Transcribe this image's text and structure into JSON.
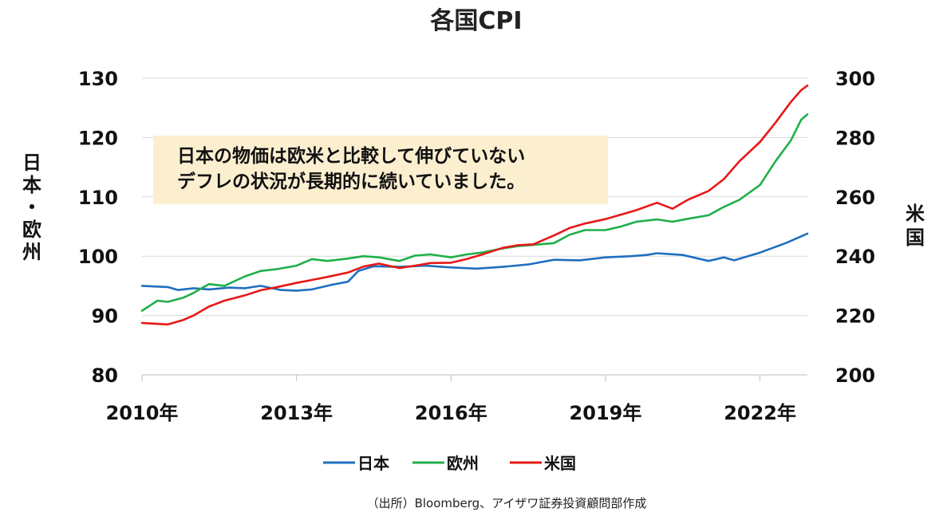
{
  "chart_data": {
    "type": "line",
    "title": "各国CPI",
    "x_ticks": [
      "2010年",
      "2013年",
      "2016年",
      "2019年",
      "2022年"
    ],
    "x_range": [
      2010.0,
      2022.92
    ],
    "y_left": {
      "label_chars": [
        "日",
        "本",
        "・",
        "欧",
        "州"
      ],
      "range": [
        80,
        130
      ],
      "ticks": [
        "80",
        "90",
        "100",
        "110",
        "120",
        "130"
      ],
      "grid": true
    },
    "y_right": {
      "label_chars": [
        "米",
        "国"
      ],
      "range": [
        200,
        300
      ],
      "ticks": [
        "200",
        "220",
        "240",
        "260",
        "280",
        "300"
      ]
    },
    "annotation": {
      "lines": [
        "日本の物価は欧米と比較して伸びていない",
        "デフレの状況が長期的に続いていました。"
      ],
      "fill": "#FCEFD0"
    },
    "legend_position": "bottom",
    "series": [
      {
        "name": "日本",
        "axis": "left",
        "color": "#1F6FC0",
        "points": [
          [
            2010.0,
            95.0
          ],
          [
            2010.5,
            94.8
          ],
          [
            2010.7,
            94.3
          ],
          [
            2011.0,
            94.6
          ],
          [
            2011.3,
            94.4
          ],
          [
            2011.7,
            94.7
          ],
          [
            2012.0,
            94.6
          ],
          [
            2012.3,
            95.0
          ],
          [
            2012.7,
            94.3
          ],
          [
            2013.0,
            94.2
          ],
          [
            2013.3,
            94.4
          ],
          [
            2013.7,
            95.2
          ],
          [
            2014.0,
            95.7
          ],
          [
            2014.2,
            97.5
          ],
          [
            2014.5,
            98.3
          ],
          [
            2015.0,
            98.2
          ],
          [
            2015.5,
            98.4
          ],
          [
            2016.0,
            98.1
          ],
          [
            2016.5,
            97.9
          ],
          [
            2017.0,
            98.2
          ],
          [
            2017.5,
            98.6
          ],
          [
            2018.0,
            99.4
          ],
          [
            2018.5,
            99.3
          ],
          [
            2019.0,
            99.8
          ],
          [
            2019.5,
            100.0
          ],
          [
            2019.8,
            100.2
          ],
          [
            2020.0,
            100.5
          ],
          [
            2020.5,
            100.2
          ],
          [
            2021.0,
            99.2
          ],
          [
            2021.3,
            99.8
          ],
          [
            2021.5,
            99.3
          ],
          [
            2022.0,
            100.6
          ],
          [
            2022.5,
            102.2
          ],
          [
            2022.92,
            103.8
          ]
        ]
      },
      {
        "name": "欧州",
        "axis": "left",
        "color": "#1FAF4A",
        "points": [
          [
            2010.0,
            90.8
          ],
          [
            2010.3,
            92.5
          ],
          [
            2010.5,
            92.3
          ],
          [
            2010.8,
            93.0
          ],
          [
            2011.0,
            93.8
          ],
          [
            2011.3,
            95.3
          ],
          [
            2011.6,
            95.0
          ],
          [
            2012.0,
            96.6
          ],
          [
            2012.3,
            97.5
          ],
          [
            2012.6,
            97.8
          ],
          [
            2013.0,
            98.4
          ],
          [
            2013.3,
            99.5
          ],
          [
            2013.6,
            99.2
          ],
          [
            2014.0,
            99.6
          ],
          [
            2014.3,
            100.0
          ],
          [
            2014.6,
            99.8
          ],
          [
            2015.0,
            99.2
          ],
          [
            2015.3,
            100.1
          ],
          [
            2015.6,
            100.3
          ],
          [
            2016.0,
            99.8
          ],
          [
            2016.3,
            100.3
          ],
          [
            2016.6,
            100.6
          ],
          [
            2017.0,
            101.3
          ],
          [
            2017.3,
            101.7
          ],
          [
            2017.6,
            101.9
          ],
          [
            2018.0,
            102.2
          ],
          [
            2018.3,
            103.6
          ],
          [
            2018.6,
            104.4
          ],
          [
            2019.0,
            104.4
          ],
          [
            2019.3,
            105.0
          ],
          [
            2019.6,
            105.8
          ],
          [
            2020.0,
            106.2
          ],
          [
            2020.3,
            105.8
          ],
          [
            2020.6,
            106.3
          ],
          [
            2021.0,
            106.9
          ],
          [
            2021.3,
            108.3
          ],
          [
            2021.6,
            109.5
          ],
          [
            2022.0,
            112.0
          ],
          [
            2022.3,
            116.0
          ],
          [
            2022.6,
            119.5
          ],
          [
            2022.8,
            123.0
          ],
          [
            2022.92,
            123.9
          ]
        ]
      },
      {
        "name": "米国",
        "axis": "right",
        "color": "#E81818",
        "points": [
          [
            2010.0,
            217.5
          ],
          [
            2010.5,
            217.0
          ],
          [
            2010.8,
            218.5
          ],
          [
            2011.0,
            220.0
          ],
          [
            2011.3,
            223.0
          ],
          [
            2011.6,
            225.0
          ],
          [
            2012.0,
            226.8
          ],
          [
            2012.3,
            228.5
          ],
          [
            2012.6,
            229.5
          ],
          [
            2013.0,
            231.0
          ],
          [
            2013.3,
            232.0
          ],
          [
            2013.6,
            233.0
          ],
          [
            2014.0,
            234.5
          ],
          [
            2014.3,
            236.5
          ],
          [
            2014.6,
            237.5
          ],
          [
            2015.0,
            236.0
          ],
          [
            2015.3,
            236.8
          ],
          [
            2015.6,
            237.7
          ],
          [
            2016.0,
            237.8
          ],
          [
            2016.3,
            239.0
          ],
          [
            2016.6,
            240.5
          ],
          [
            2017.0,
            242.8
          ],
          [
            2017.3,
            243.7
          ],
          [
            2017.6,
            244.0
          ],
          [
            2018.0,
            247.0
          ],
          [
            2018.3,
            249.5
          ],
          [
            2018.6,
            251.0
          ],
          [
            2019.0,
            252.5
          ],
          [
            2019.3,
            254.0
          ],
          [
            2019.6,
            255.5
          ],
          [
            2020.0,
            258.0
          ],
          [
            2020.3,
            256.0
          ],
          [
            2020.6,
            259.0
          ],
          [
            2021.0,
            262.0
          ],
          [
            2021.3,
            266.0
          ],
          [
            2021.6,
            272.0
          ],
          [
            2022.0,
            278.5
          ],
          [
            2022.3,
            285.0
          ],
          [
            2022.6,
            292.0
          ],
          [
            2022.8,
            296.0
          ],
          [
            2022.92,
            297.5
          ]
        ]
      }
    ]
  },
  "source": "（出所）Bloomberg、アイザワ証券投資顧問部作成"
}
